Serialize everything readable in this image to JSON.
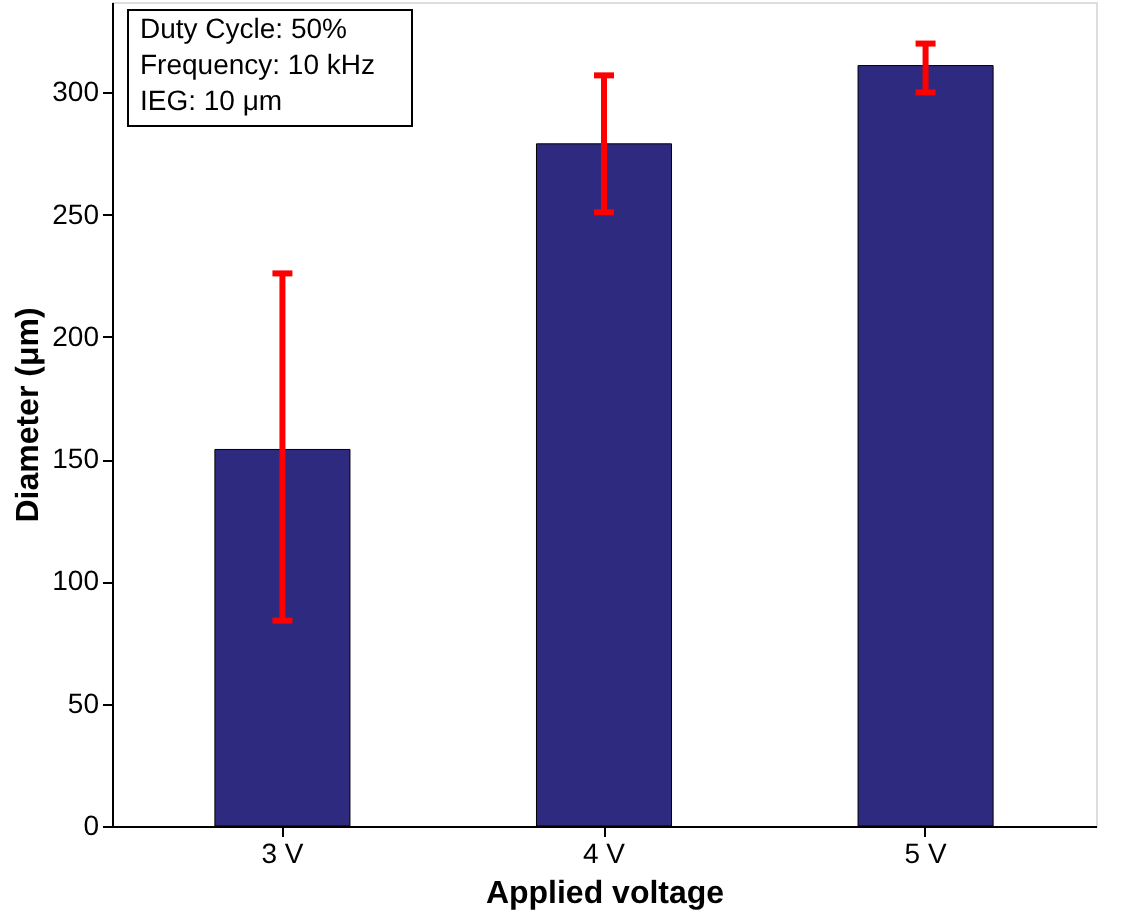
{
  "chart_data": {
    "type": "bar",
    "xlabel": "Applied voltage",
    "ylabel": "Diameter (μm)",
    "categories": [
      "3 V",
      "4 V",
      "5 V"
    ],
    "values": [
      154,
      279,
      311
    ],
    "errors": [
      [
        84,
        226
      ],
      [
        251,
        307
      ],
      [
        300,
        320
      ]
    ],
    "color": "#2e2a7f",
    "ylim": [
      0,
      337
    ],
    "yticks": [
      0,
      50,
      100,
      150,
      200,
      250,
      300
    ],
    "grid": false,
    "annotations": [
      "Duty Cycle: 50%\nFrequency: 10 kHz\nIEG: 10 μm"
    ]
  }
}
